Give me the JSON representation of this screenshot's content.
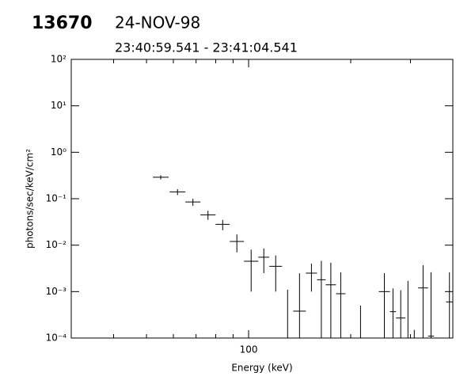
{
  "chart_data": {
    "type": "errorbar",
    "title": "13670",
    "date": "24-NOV-98",
    "time_range": "23:40:59.541 - 23:41:04.541",
    "x_label": "Energy (keV)",
    "y_label": "photons/sec/keV/cm²",
    "log_x": true,
    "log_y": true,
    "xlim": [
      30,
      400
    ],
    "xticks": [
      100
    ],
    "xticks_minor": [
      40,
      50,
      60,
      70,
      80,
      90,
      200,
      300
    ],
    "ylim": [
      0.0001,
      100
    ],
    "yticks": [
      {
        "value": 0.0001,
        "label": "10⁻⁴"
      },
      {
        "value": 0.001,
        "label": "10⁻³"
      },
      {
        "value": 0.01,
        "label": "10⁻²"
      },
      {
        "value": 0.1,
        "label": "10⁻¹"
      },
      {
        "value": 1,
        "label": "10⁰"
      },
      {
        "value": 10,
        "label": "10¹"
      },
      {
        "value": 100,
        "label": "10²"
      }
    ],
    "color": "#000000",
    "x_lo": [
      52.2,
      58.5,
      65.1,
      72.1,
      79.9,
      88.0,
      96.9,
      106.8,
      115.1,
      125.5,
      135.3,
      147.5,
      159.1,
      168.7,
      181,
      204,
      242,
      261,
      272,
      290,
      300,
      316,
      338,
      382
    ],
    "x_hi": [
      58.1,
      65.1,
      72.1,
      79.9,
      88.0,
      96.9,
      106.8,
      115.1,
      125.5,
      135.3,
      147.5,
      159.1,
      168.7,
      181,
      193,
      224,
      261,
      272,
      290,
      300,
      316,
      338,
      352,
      400
    ],
    "values": [
      0.29,
      0.14,
      0.085,
      0.045,
      0.028,
      0.012,
      0.0045,
      0.0055,
      0.0035,
      0,
      0.00038,
      0.0025,
      0.0018,
      0.0014,
      0.0009,
      0,
      0.001,
      0.00037,
      0.00027,
      0,
      0,
      0.0012,
      0.00011,
      0.0006
    ],
    "errors": [
      0.03,
      0.02,
      0.015,
      0.01,
      0.007,
      0.005,
      0.0035,
      0.003,
      0.0025,
      0.0011,
      0.0021,
      0.0015,
      0.0028,
      0.0028,
      0.0017,
      0.0005,
      0.0015,
      0.0008,
      0.0008,
      0.0017,
      0.00015,
      0.0025,
      0.0025,
      0.002
    ]
  }
}
